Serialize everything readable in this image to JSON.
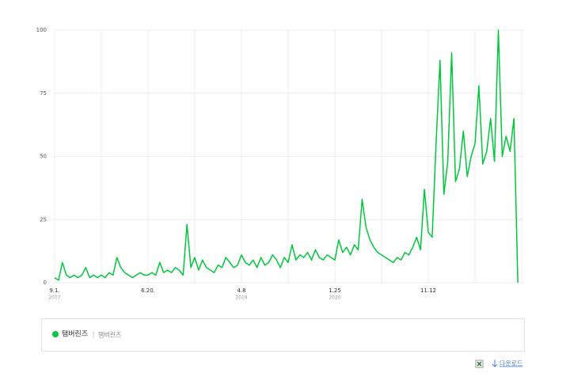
{
  "chart_data": {
    "type": "line",
    "categories": [
      "9.1.",
      null,
      null,
      null,
      null,
      null,
      null,
      null,
      null,
      null,
      null,
      null,
      null,
      null,
      null,
      null,
      null,
      null,
      null,
      null,
      null,
      null,
      null,
      null,
      "6.20.",
      null,
      null,
      null,
      null,
      null,
      null,
      null,
      null,
      null,
      null,
      null,
      null,
      null,
      null,
      null,
      null,
      null,
      null,
      null,
      null,
      null,
      null,
      null,
      "4.8",
      null,
      null,
      null,
      null,
      null,
      null,
      null,
      null,
      null,
      null,
      null,
      null,
      null,
      null,
      null,
      null,
      null,
      null,
      null,
      null,
      null,
      null,
      null,
      "1.25",
      null,
      null,
      null,
      null,
      null,
      null,
      null,
      null,
      null,
      null,
      null,
      null,
      null,
      null,
      null,
      null,
      null,
      null,
      null,
      null,
      null,
      null,
      null,
      "11.12",
      null,
      null,
      null,
      null,
      null,
      null,
      null,
      null,
      null,
      null,
      null,
      null,
      null,
      null,
      null,
      null,
      null,
      null,
      null,
      null,
      null,
      null,
      null
    ],
    "years": [
      "2017",
      null,
      null,
      null,
      null,
      null,
      null,
      null,
      null,
      null,
      null,
      null,
      null,
      null,
      null,
      null,
      null,
      null,
      null,
      null,
      null,
      null,
      null,
      null,
      null,
      null,
      null,
      null,
      null,
      null,
      null,
      null,
      null,
      null,
      null,
      null,
      null,
      null,
      null,
      null,
      null,
      null,
      null,
      null,
      null,
      null,
      null,
      null,
      "2019",
      null,
      null,
      null,
      null,
      null,
      null,
      null,
      null,
      null,
      null,
      null,
      null,
      null,
      null,
      null,
      null,
      null,
      null,
      null,
      null,
      null,
      null,
      null,
      "2020",
      null,
      null,
      null,
      null,
      null,
      null,
      null,
      null,
      null,
      null,
      null,
      null,
      null,
      null,
      null,
      null,
      null,
      null,
      null,
      null,
      null,
      null,
      null,
      null,
      null,
      null,
      null,
      null,
      null,
      null,
      null,
      null,
      null,
      null,
      null,
      null,
      null,
      null,
      null,
      null,
      null,
      null,
      null,
      null,
      null,
      null,
      null
    ],
    "series": [
      {
        "name": "탬버린즈",
        "color": "#00c73c",
        "values": [
          2,
          1,
          8,
          3,
          2,
          3,
          2,
          3,
          6,
          2,
          3,
          2,
          3,
          2,
          4,
          3,
          10,
          6,
          4,
          3,
          2,
          3,
          4,
          3,
          3,
          4,
          3,
          8,
          4,
          5,
          4,
          6,
          5,
          3,
          23,
          6,
          10,
          5,
          9,
          6,
          5,
          4,
          7,
          6,
          10,
          8,
          6,
          7,
          11,
          8,
          7,
          9,
          6,
          10,
          7,
          8,
          11,
          9,
          6,
          10,
          8,
          15,
          9,
          11,
          10,
          12,
          9,
          13,
          10,
          9,
          11,
          10,
          9,
          17,
          12,
          14,
          11,
          15,
          13,
          33,
          22,
          17,
          14,
          12,
          11,
          10,
          9,
          8,
          10,
          9,
          12,
          11,
          14,
          18,
          13,
          37,
          20,
          18,
          55,
          88,
          35,
          48,
          91,
          40,
          45,
          60,
          42,
          50,
          55,
          78,
          47,
          52,
          65,
          48,
          100,
          50,
          58,
          52,
          65,
          0
        ]
      }
    ],
    "keywords": [
      "탬버린즈"
    ],
    "ylim": [
      0,
      100
    ],
    "yticks": [
      0,
      25,
      50,
      75,
      100
    ],
    "grid": true
  },
  "download_label": "다운로드"
}
